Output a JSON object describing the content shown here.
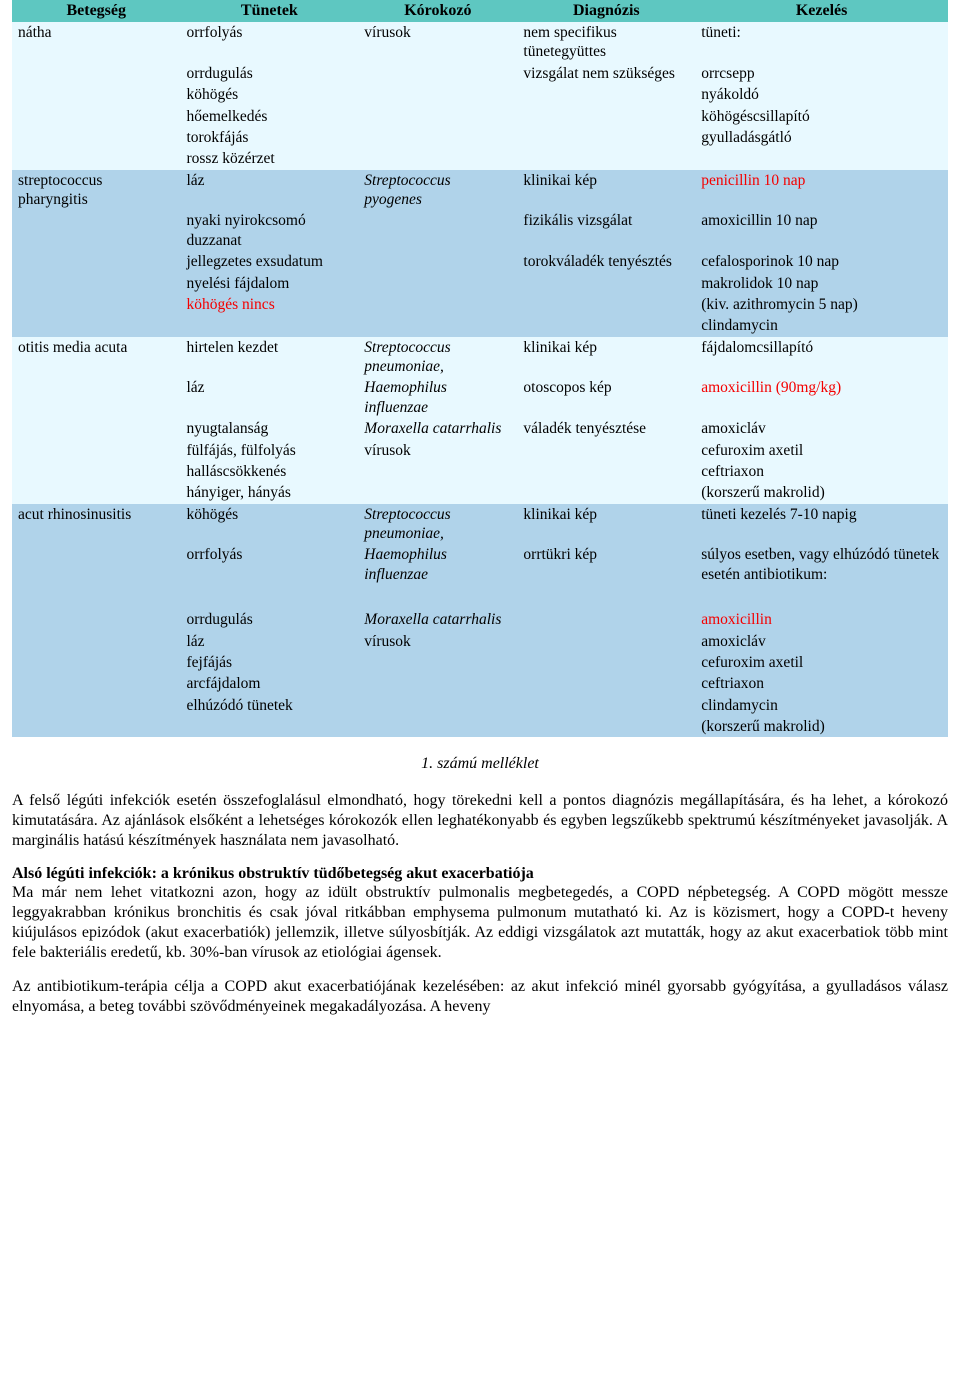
{
  "colors": {
    "header_bg": "#5ec7c1",
    "band_light": "#e8f9ff",
    "band_dark": "#b0d3ea",
    "red": "#f40000",
    "text": "#000000"
  },
  "table": {
    "columns": [
      "Betegség",
      "Tünetek",
      "Kórokozó",
      "Diagnózis",
      "Kezelés"
    ],
    "col_widths_pct": [
      18,
      19,
      17,
      19,
      27
    ],
    "rows": [
      {
        "band": "light",
        "c": [
          "nátha",
          "orrfolyás",
          "vírusok",
          "nem specifikus tünetegyüttes",
          "tüneti:"
        ]
      },
      {
        "band": "light",
        "c": [
          "",
          "orrdugulás",
          "",
          "vizsgálat nem szükséges",
          "orrcsepp"
        ]
      },
      {
        "band": "light",
        "c": [
          "",
          "köhögés",
          "",
          "",
          "nyákoldó"
        ]
      },
      {
        "band": "light",
        "c": [
          "",
          "hőemelkedés",
          "",
          "",
          "köhögéscsillapító"
        ]
      },
      {
        "band": "light",
        "c": [
          "",
          "torokfájás",
          "",
          "",
          "gyulladásgátló"
        ]
      },
      {
        "band": "light",
        "c": [
          "",
          "rossz közérzet",
          "",
          "",
          ""
        ]
      },
      {
        "band": "dark",
        "c": [
          "streptococcus pharyngitis",
          "láz",
          "Streptococcus pyogenes",
          "klinikai kép",
          "penicillin 10 nap"
        ],
        "italic": [
          2
        ],
        "red": [
          4
        ],
        "disease_rowspan": 6,
        "korokozo_rowspan": 2
      },
      {
        "band": "dark",
        "c": [
          "",
          "nyaki nyirokcsomó duzzanat",
          "",
          "fizikális vizsgálat",
          "amoxicillin 10 nap"
        ]
      },
      {
        "band": "dark",
        "c": [
          "",
          "jellegzetes exsudatum",
          "",
          "torokváladék tenyésztés",
          "cefalosporinok 10 nap"
        ]
      },
      {
        "band": "dark",
        "c": [
          "",
          "nyelési fájdalom",
          "",
          "",
          "makrolidok 10 nap"
        ]
      },
      {
        "band": "dark",
        "c": [
          "",
          "köhögés nincs",
          "",
          "",
          "(kiv. azithromycin 5 nap)"
        ],
        "red": [
          1
        ]
      },
      {
        "band": "dark",
        "c": [
          "",
          "",
          "",
          "",
          "clindamycin"
        ]
      },
      {
        "band": "light",
        "c": [
          "otitis media acuta",
          "hirtelen kezdet",
          "Streptococcus pneumoniae,",
          "klinikai kép",
          "fájdalomcsillapító"
        ],
        "italic": [
          2
        ]
      },
      {
        "band": "light",
        "c": [
          "",
          "láz",
          "Haemophilus influenzae",
          "otoscopos kép",
          "amoxicillin (90mg/kg)"
        ],
        "italic": [
          2
        ],
        "red": [
          4
        ]
      },
      {
        "band": "light",
        "c": [
          "",
          "nyugtalanság",
          "Moraxella catarrhalis",
          "váladék tenyésztése",
          "amoxicláv"
        ],
        "italic": [
          2
        ]
      },
      {
        "band": "light",
        "c": [
          "",
          "fülfájás, fülfolyás",
          "vírusok",
          "",
          "cefuroxim axetil"
        ]
      },
      {
        "band": "light",
        "c": [
          "",
          "halláscsökkenés",
          "",
          "",
          "ceftriaxon"
        ]
      },
      {
        "band": "light",
        "c": [
          "",
          "hányiger, hányás",
          "",
          "",
          "(korszerű makrolid)"
        ]
      },
      {
        "band": "dark",
        "c": [
          "acut rhinosinusitis",
          "köhögés",
          "Streptococcus pneumoniae,",
          "klinikai kép",
          "tüneti kezelés 7-10 napig"
        ],
        "italic": [
          2
        ]
      },
      {
        "band": "dark",
        "c": [
          "",
          "orrfolyás",
          "Haemophilus influenzae",
          "orrtükri kép",
          "súlyos esetben, vagy elhúzódó tünetek esetén antibiotikum:"
        ],
        "italic": [
          2
        ]
      },
      {
        "band": "dark",
        "gap": true
      },
      {
        "band": "dark",
        "c": [
          "",
          "orrdugulás",
          "Moraxella catarrhalis",
          "",
          "amoxicillin"
        ],
        "italic": [
          2
        ],
        "red": [
          4
        ]
      },
      {
        "band": "dark",
        "c": [
          "",
          "láz",
          "vírusok",
          "",
          "amoxicláv"
        ]
      },
      {
        "band": "dark",
        "c": [
          "",
          "fejfájás",
          "",
          "",
          "cefuroxim axetil"
        ]
      },
      {
        "band": "dark",
        "c": [
          "",
          "arcfájdalom",
          "",
          "",
          "ceftriaxon"
        ]
      },
      {
        "band": "dark",
        "c": [
          "",
          "elhúzódó tünetek",
          "",
          "",
          "clindamycin"
        ]
      },
      {
        "band": "dark",
        "c": [
          "",
          "",
          "",
          "",
          "(korszerű makrolid)"
        ]
      }
    ]
  },
  "caption": "1. számú melléklet",
  "para1": "A felső légúti infekciók esetén összefoglalásul elmondható, hogy törekedni kell a pontos diagnózis megállapítására, és ha lehet, a kórokozó kimutatására. Az ajánlások elsőként a lehetséges kórokozók ellen leghatékonyabb és egyben legszűkebb spektrumú készítményeket javasolják. A marginális hatású készítmények használata nem javasolható.",
  "heading2": "Alsó légúti infekciók: a krónikus obstruktív tüdőbetegség akut exacerbatiója",
  "para2": "Ma már nem lehet vitatkozni azon, hogy az idült obstruktív pulmonalis megbetegedés, a COPD népbetegség. A COPD mögött messze leggyakrabban krónikus bronchitis és csak jóval ritkábban emphysema pulmonum mutatható ki. Az is közismert, hogy a COPD-t heveny kiújulásos epizódok (akut exacerbatiók) jellemzik, illetve súlyosbítják. Az eddigi vizsgálatok azt mutatták, hogy az akut exacerbatiok több mint fele bakteriális eredetű, kb. 30%-ban vírusok az etiológiai ágensek.",
  "para3": "Az antibiotikum-terápia célja a COPD akut exacerbatiójának kezelésében: az akut infekció minél gyorsabb gyógyítása, a gyulladásos válasz elnyomása, a beteg további szövődményeinek megakadályozása. A heveny"
}
